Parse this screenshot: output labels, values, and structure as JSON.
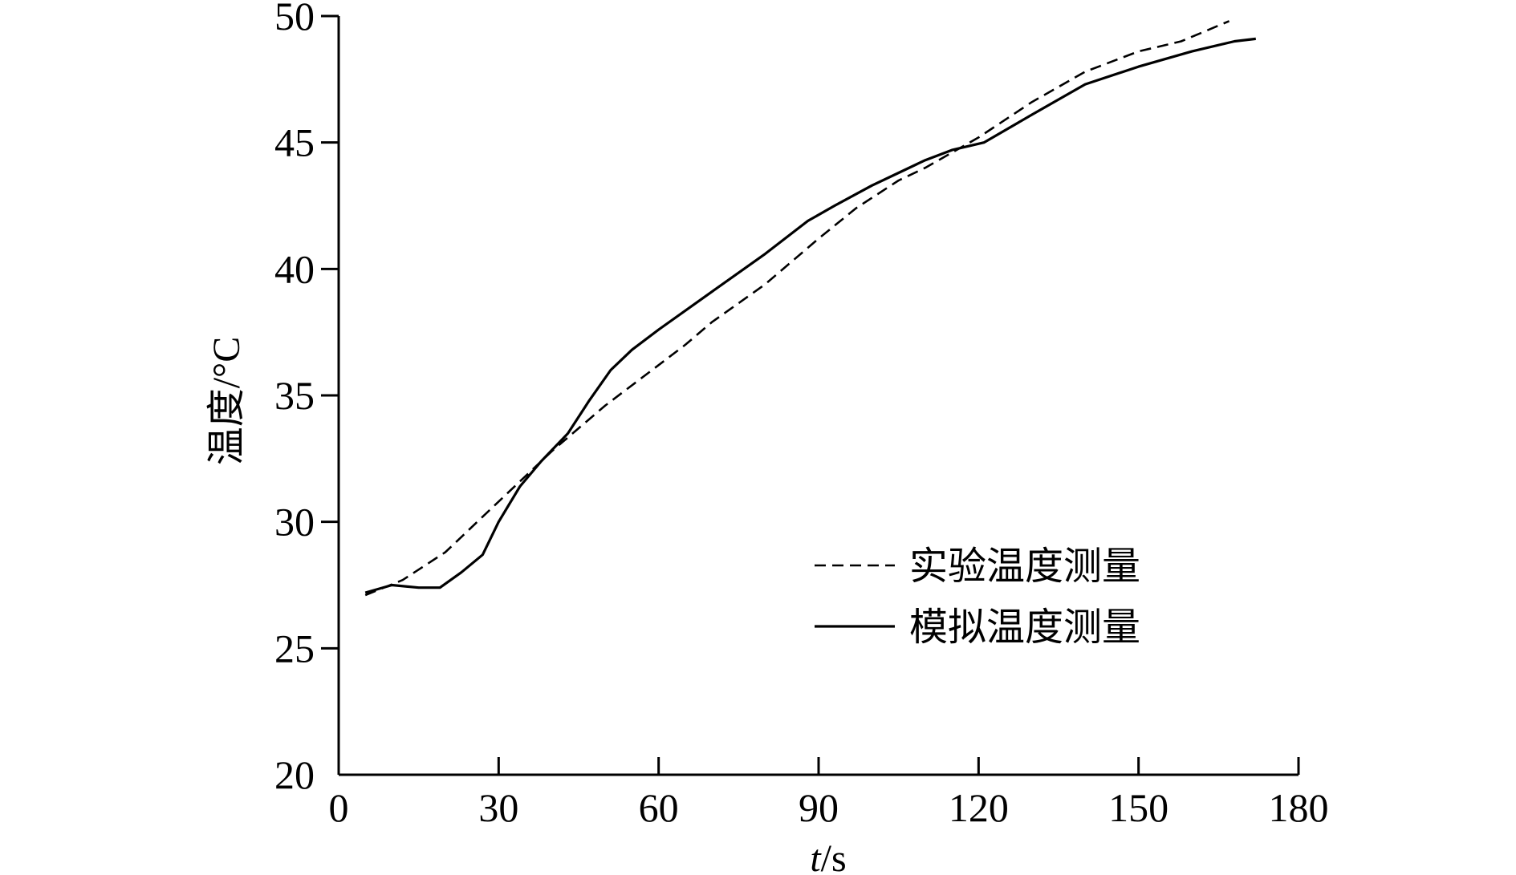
{
  "chart_data": {
    "type": "line",
    "xlabel_var": "t",
    "xlabel_unit": "/s",
    "ylabel": "温度/°C",
    "xlim": [
      0,
      180
    ],
    "ylim": [
      20,
      50
    ],
    "xticks": [
      0,
      30,
      60,
      90,
      120,
      150,
      180
    ],
    "yticks": [
      20,
      25,
      30,
      35,
      40,
      45,
      50
    ],
    "grid": false,
    "legend_position": "bottom-right",
    "series": [
      {
        "name": "实验温度测量",
        "style": "dashed",
        "color": "#000000",
        "x": [
          5,
          12,
          20,
          30,
          40,
          50,
          60,
          65,
          70,
          80,
          90,
          97,
          105,
          110,
          120,
          130,
          140,
          150,
          158,
          167
        ],
        "y": [
          27.1,
          27.7,
          28.8,
          30.8,
          32.8,
          34.6,
          36.2,
          37.0,
          37.9,
          39.4,
          41.2,
          42.4,
          43.5,
          44.0,
          45.2,
          46.6,
          47.8,
          48.6,
          49.0,
          49.8
        ]
      },
      {
        "name": "模拟温度测量",
        "style": "solid",
        "color": "#000000",
        "x": [
          5,
          10,
          15,
          19,
          23,
          27,
          30,
          34,
          38,
          43,
          47,
          51,
          55,
          60,
          70,
          80,
          88,
          93,
          100,
          105,
          110,
          115,
          121,
          130,
          140,
          150,
          160,
          168,
          172
        ],
        "y": [
          27.2,
          27.5,
          27.4,
          27.4,
          28.0,
          28.7,
          30.0,
          31.4,
          32.4,
          33.5,
          34.8,
          36.0,
          36.8,
          37.6,
          39.1,
          40.6,
          41.9,
          42.5,
          43.3,
          43.8,
          44.3,
          44.7,
          45.0,
          46.1,
          47.3,
          48.0,
          48.6,
          49.0,
          49.1
        ]
      }
    ]
  }
}
